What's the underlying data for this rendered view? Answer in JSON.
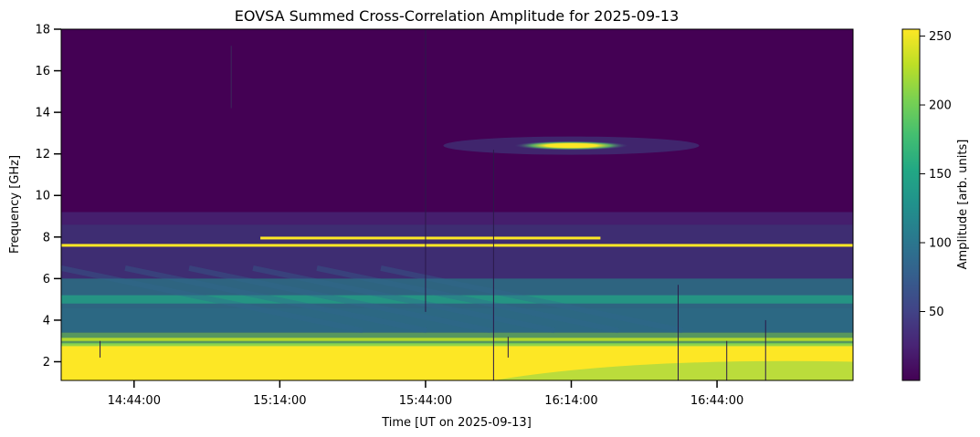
{
  "chart_data": {
    "type": "heatmap",
    "title": "EOVSA Summed Cross-Correlation Amplitude for 2025-09-13",
    "xlabel": "Time [UT on 2025-09-13]",
    "ylabel": "Frequency [GHz]",
    "colorbar_label": "Amplitude [arb. units]",
    "colormap": "viridis",
    "xlim": [
      "14:29:00",
      "17:12:00"
    ],
    "ylim": [
      1.1,
      18
    ],
    "x_ticks": [
      "14:44:00",
      "15:14:00",
      "15:44:00",
      "16:14:00",
      "16:44:00"
    ],
    "y_ticks": [
      2,
      4,
      6,
      8,
      10,
      12,
      14,
      16,
      18
    ],
    "colorbar_range": [
      0,
      255
    ],
    "colorbar_ticks": [
      50,
      100,
      150,
      200,
      250
    ],
    "features": [
      {
        "freq_range_ghz": [
          1.1,
          2.8
        ],
        "amplitude": 255,
        "time_range": [
          "14:29:00",
          "17:12:00"
        ]
      },
      {
        "freq_range_ghz": [
          3.0,
          3.4
        ],
        "amplitude": 200,
        "time_range": [
          "14:29:00",
          "17:12:00"
        ]
      },
      {
        "freq_ghz": 7.6,
        "amplitude": 255,
        "time_range": [
          "14:29:00",
          "17:12:00"
        ]
      },
      {
        "freq_ghz": 7.95,
        "amplitude": 240,
        "time_range": [
          "15:10:00",
          "16:20:00"
        ]
      },
      {
        "freq_range_ghz": [
          12.2,
          12.6
        ],
        "amplitude": 255,
        "time_range": [
          "16:08:00",
          "16:20:00"
        ]
      }
    ]
  }
}
